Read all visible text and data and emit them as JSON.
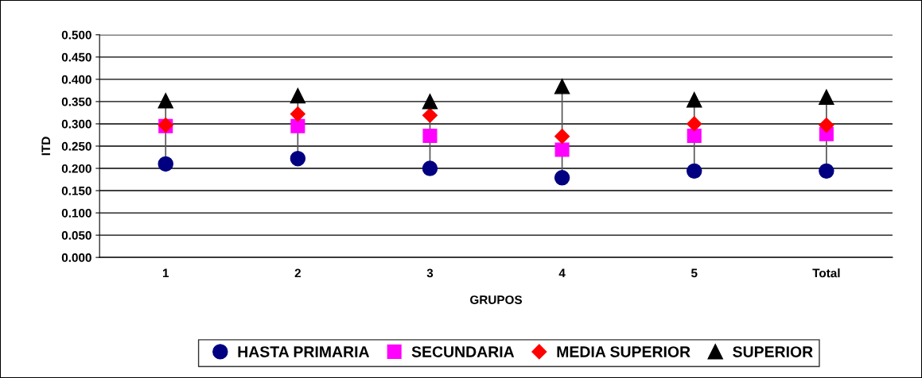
{
  "chart_data": {
    "type": "scatter",
    "xlabel": "GRUPOS",
    "ylabel": "ITD",
    "categories": [
      "1",
      "2",
      "3",
      "4",
      "5",
      "Total"
    ],
    "series": [
      {
        "name": "HASTA PRIMARIA",
        "color": "#000080",
        "marker": "circle",
        "values": [
          0.21,
          0.222,
          0.2,
          0.179,
          0.194,
          0.194
        ]
      },
      {
        "name": "SECUNDARIA",
        "color": "#ff00ff",
        "marker": "square",
        "values": [
          0.295,
          0.295,
          0.273,
          0.242,
          0.273,
          0.277
        ]
      },
      {
        "name": "MEDIA SUPERIOR",
        "color": "#ff0000",
        "marker": "diamond",
        "values": [
          0.297,
          0.322,
          0.319,
          0.272,
          0.3,
          0.297
        ]
      },
      {
        "name": "SUPERIOR",
        "color": "#000000",
        "marker": "triangle",
        "values": [
          0.352,
          0.363,
          0.35,
          0.384,
          0.354,
          0.36
        ]
      }
    ],
    "ylim": [
      0,
      0.5
    ],
    "yticks": [
      {
        "value": 0,
        "label": "0.000"
      },
      {
        "value": 0.05,
        "label": "0.050"
      },
      {
        "value": 0.1,
        "label": "0.100"
      },
      {
        "value": 0.15,
        "label": "0.150"
      },
      {
        "value": 0.2,
        "label": "0.200"
      },
      {
        "value": 0.25,
        "label": "0.250"
      },
      {
        "value": 0.3,
        "label": "0.300"
      },
      {
        "value": 0.35,
        "label": "0.350"
      },
      {
        "value": 0.4,
        "label": "0.400"
      },
      {
        "value": 0.45,
        "label": "0.450"
      },
      {
        "value": 0.5,
        "label": "0.500"
      }
    ],
    "grid": "y",
    "legend": "bottom"
  }
}
